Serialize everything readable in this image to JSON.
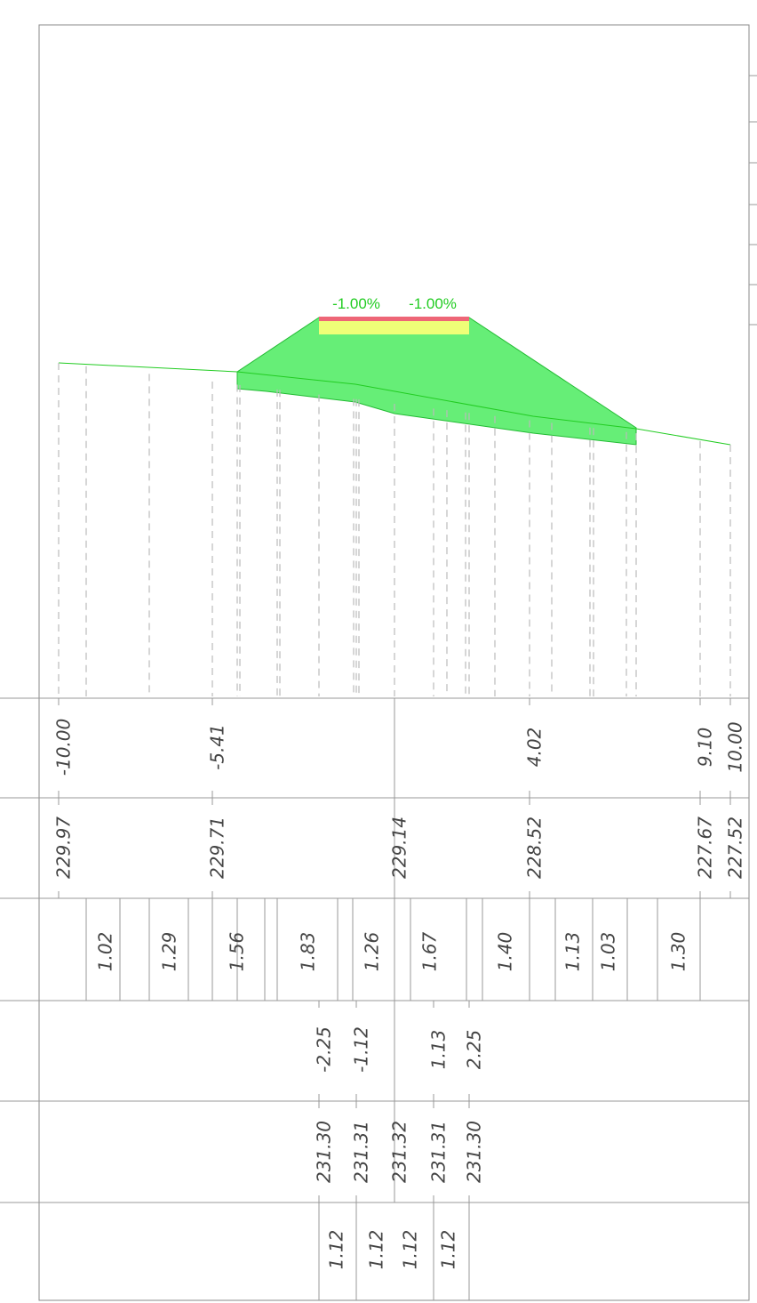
{
  "grades": [
    "-1.00%",
    "-1.00%"
  ],
  "offsets": [
    "-10.00",
    "-5.41",
    "4.02",
    "9.10",
    "10.00"
  ],
  "ground_elevations": [
    "229.97",
    "229.71",
    "229.14",
    "228.52",
    "227.67",
    "227.52"
  ],
  "distances": [
    "1.02",
    "1.29",
    "1.56",
    "1.83",
    "1.26",
    "1.67",
    "1.40",
    "1.13",
    "1.03",
    "1.30"
  ],
  "design_offsets": [
    "-2.25",
    "-1.12",
    "1.13",
    "2.25"
  ],
  "design_elevations": [
    "231.30",
    "231.31",
    "231.32",
    "231.31",
    "231.30"
  ],
  "widths": [
    "1.12",
    "1.12",
    "1.12",
    "1.12"
  ]
}
